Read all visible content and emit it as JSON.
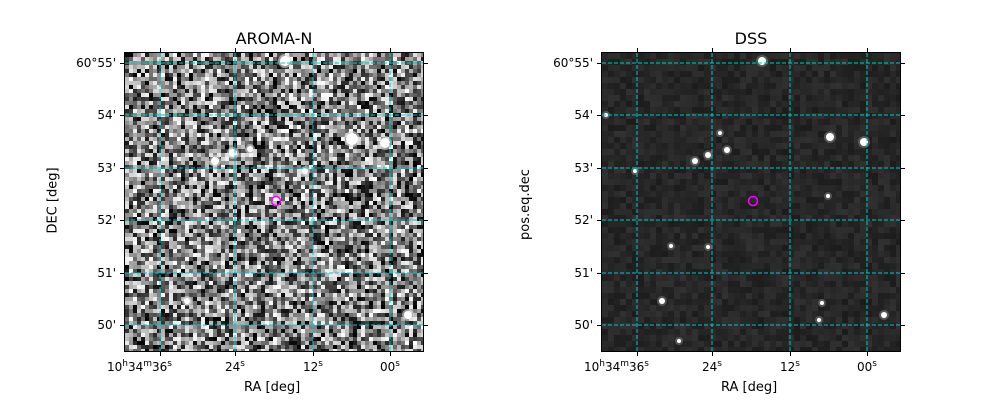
{
  "panels": [
    {
      "title": "AROMA-N",
      "xlabel": "RA [deg]",
      "ylabel": "DEC [deg]",
      "style": "noisy"
    },
    {
      "title": "DSS",
      "xlabel": "RA [deg]",
      "ylabel": "pos.eq.dec",
      "style": "dark"
    }
  ],
  "xticks": [
    {
      "main": "10",
      "sup1": "h",
      "mid": "34",
      "sup2": "m",
      "sec": "36",
      "sup3": "s"
    },
    {
      "sec": "24",
      "sup3": "s"
    },
    {
      "sec": "12",
      "sup3": "s"
    },
    {
      "sec": "00",
      "sup3": "s"
    }
  ],
  "yticks": [
    "60°55'",
    "54'",
    "53'",
    "52'",
    "51'",
    "50'"
  ],
  "grid_color": "#00c8c8",
  "marker_color": "#ff00ff"
}
